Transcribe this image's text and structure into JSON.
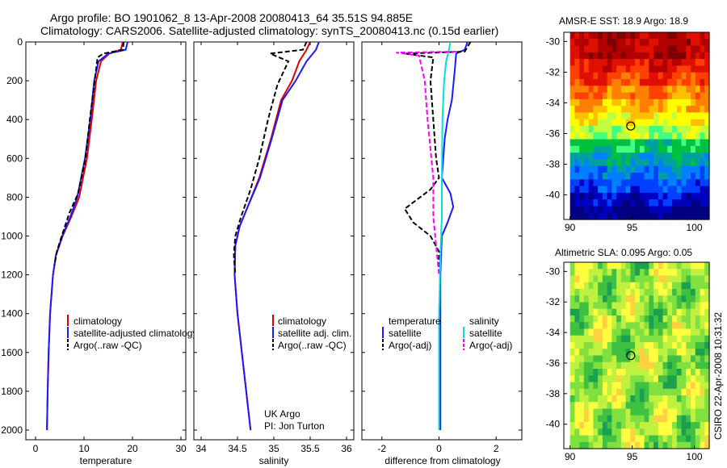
{
  "header": {
    "line1": "Argo profile: BO 1901062_8 13-Apr-2008 20080413_64 35.51S 94.885E",
    "line2": "Climatology: CARS2006. Satellite-adjusted climatology: synTS_20080413.nc (0.15d earlier)"
  },
  "credit": "CSIRO 22-Apr-2008 10:31:32",
  "colors": {
    "climatology": "#e00000",
    "satellite": "#1a1aff",
    "argo": "#000000",
    "salinity_satellite": "#00e0e0",
    "salinity_argo": "#ff00ff"
  },
  "chart_data": [
    {
      "type": "line",
      "id": "temperature",
      "xlabel": "temperature",
      "xlim": [
        -2,
        31
      ],
      "ylim": [
        0,
        2050
      ],
      "xticks": [
        "0",
        "10",
        "20",
        "30"
      ],
      "yticks": [
        "0",
        "200",
        "400",
        "600",
        "800",
        "1000",
        "1200",
        "1400",
        "1600",
        "1800",
        "2000"
      ],
      "legend": [
        "climatology",
        "satellite-adjusted climatology",
        "Argo(..raw -QC)"
      ],
      "series": [
        {
          "name": "climatology",
          "style": "solid",
          "color_key": "climatology",
          "x": [
            18.0,
            17.6,
            15.2,
            13.5,
            12.5,
            11.6,
            10.6,
            9.0,
            7.4,
            5.6,
            4.2,
            3.6,
            3.0,
            2.7,
            2.5,
            2.35
          ],
          "y": [
            0,
            40,
            60,
            100,
            200,
            400,
            600,
            800,
            900,
            1000,
            1100,
            1200,
            1400,
            1600,
            1800,
            2000
          ]
        },
        {
          "name": "satellite-adjusted climatology",
          "style": "solid",
          "color_key": "satellite",
          "x": [
            19.0,
            18.6,
            15.0,
            13.0,
            12.1,
            11.3,
            10.2,
            8.6,
            7.2,
            5.5,
            4.2,
            3.6,
            3.0,
            2.7,
            2.5,
            2.35
          ],
          "y": [
            0,
            40,
            60,
            100,
            200,
            400,
            600,
            800,
            900,
            1000,
            1100,
            1200,
            1400,
            1600,
            1800,
            2000
          ]
        },
        {
          "name": "Argo(..raw -QC)",
          "style": "dashed",
          "color_key": "argo",
          "x": [
            18.2,
            18.0,
            14.0,
            12.8,
            12.2,
            11.2,
            10.3,
            8.8,
            7.0,
            5.4,
            4.4,
            3.9
          ],
          "y": [
            0,
            40,
            60,
            80,
            200,
            400,
            600,
            780,
            880,
            1000,
            1080,
            1150
          ]
        }
      ]
    },
    {
      "type": "line",
      "id": "salinity",
      "xlabel": "salinity",
      "xlim": [
        33.9,
        36.1
      ],
      "ylim": [
        0,
        2050
      ],
      "xticks": [
        "34",
        "34.5",
        "35",
        "35.5",
        "36"
      ],
      "legend": [
        "climatology",
        "satellite adj. clim.",
        "Argo(..raw -QC)"
      ],
      "annotation": [
        "UK Argo",
        "PI: Jon Turton"
      ],
      "series": [
        {
          "name": "climatology",
          "style": "solid",
          "color_key": "climatology",
          "x": [
            35.5,
            35.45,
            35.35,
            35.25,
            35.1,
            34.96,
            34.8,
            34.64,
            34.53,
            34.47,
            34.46,
            34.5,
            34.56,
            34.62,
            34.68
          ],
          "y": [
            0,
            40,
            100,
            200,
            300,
            500,
            700,
            850,
            950,
            1050,
            1200,
            1400,
            1600,
            1800,
            2000
          ]
        },
        {
          "name": "satellite adj. clim.",
          "style": "solid",
          "color_key": "satellite",
          "x": [
            35.62,
            35.58,
            35.45,
            35.3,
            35.12,
            34.97,
            34.81,
            34.64,
            34.53,
            34.47,
            34.46,
            34.5,
            34.56,
            34.62,
            34.68
          ],
          "y": [
            0,
            40,
            100,
            200,
            300,
            500,
            700,
            850,
            950,
            1050,
            1200,
            1400,
            1600,
            1800,
            2000
          ]
        },
        {
          "name": "Argo(..raw -QC)",
          "style": "dashed",
          "color_key": "argo",
          "x": [
            35.45,
            35.4,
            34.95,
            35.2,
            35.05,
            34.92,
            34.8,
            34.68,
            34.55,
            34.47,
            34.45,
            34.47
          ],
          "y": [
            0,
            40,
            60,
            100,
            220,
            400,
            600,
            760,
            900,
            1000,
            1100,
            1200
          ]
        }
      ]
    },
    {
      "type": "line",
      "id": "difference",
      "xlabel": "difference from climatology",
      "xlim": [
        -2.7,
        2.9
      ],
      "ylim": [
        0,
        2050
      ],
      "xticks": [
        "-2",
        "0",
        "2"
      ],
      "legend": [
        "temperature",
        "satellite",
        "Argo(-adj)",
        "salinity",
        "satellite",
        "Argo(-adj)"
      ],
      "series": [
        {
          "name": "temperature satellite",
          "style": "solid",
          "color_key": "satellite",
          "x": [
            1.0,
            0.9,
            0.6,
            0.55,
            0.45,
            0.3,
            0.2,
            0.15,
            0.1,
            0.4,
            0.5,
            0.3,
            0.1,
            0.05,
            0.05,
            0.05,
            0.05
          ],
          "y": [
            0,
            40,
            60,
            150,
            300,
            400,
            500,
            600,
            700,
            780,
            850,
            930,
            1000,
            1200,
            1500,
            1800,
            2000
          ]
        },
        {
          "name": "temperature Argo(-adj)",
          "style": "dashed",
          "color_key": "argo",
          "x": [
            1.1,
            0.9,
            -1.2,
            -0.2,
            -0.3,
            -0.2,
            -0.1,
            0.0,
            -0.3,
            -1.2,
            -0.9,
            -0.3,
            0.0,
            0.0
          ],
          "y": [
            0,
            50,
            60,
            80,
            200,
            400,
            600,
            700,
            760,
            860,
            930,
            1000,
            1080,
            1160
          ]
        },
        {
          "name": "salinity satellite",
          "style": "solid",
          "color_key": "salinity_satellite",
          "x": [
            0.4,
            0.35,
            0.25,
            0.18,
            0.12,
            0.1,
            0.1,
            0.05,
            0.0,
            0.0,
            0.0
          ],
          "y": [
            0,
            40,
            100,
            200,
            400,
            700,
            900,
            1100,
            1400,
            1700,
            2000
          ]
        },
        {
          "name": "salinity Argo(-adj)",
          "style": "dashed",
          "color_key": "salinity_argo",
          "x": [
            0.6,
            -1.5,
            -0.7,
            -0.5,
            -0.4,
            -0.2,
            -0.2,
            -0.1,
            0.0
          ],
          "y": [
            50,
            55,
            70,
            200,
            400,
            700,
            900,
            1050,
            1200
          ]
        }
      ]
    },
    {
      "type": "heatmap",
      "id": "amsr_e_sst",
      "title": "AMSR-E SST: 18.9 Argo: 18.9",
      "xlim": [
        89.5,
        101.2
      ],
      "ylim": [
        -41.6,
        -29.4
      ],
      "xticks": [
        "90",
        "95",
        "100"
      ],
      "yticks": [
        "-30",
        "-32",
        "-34",
        "-36",
        "-38",
        "-40"
      ],
      "marker": {
        "x": 94.885,
        "y": -35.51
      },
      "colors": [
        "#800000",
        "#b30000",
        "#e01000",
        "#ff4000",
        "#ff8000",
        "#ffbf00",
        "#ffff00",
        "#bfff40",
        "#40ff80",
        "#00c040",
        "#00a0a0",
        "#0080ff",
        "#0040ff",
        "#0000c0",
        "#000080"
      ],
      "row_levels": [
        1,
        1,
        2,
        3,
        4,
        5,
        6,
        7,
        9,
        10,
        11,
        12,
        13,
        14
      ]
    },
    {
      "type": "heatmap",
      "id": "altimetric_sla",
      "title": "Altimetric SLA: 0.095 Argo: 0.05",
      "xlim": [
        89.5,
        101.2
      ],
      "ylim": [
        -41.6,
        -29.4
      ],
      "xticks": [
        "90",
        "95",
        "100"
      ],
      "yticks": [
        "-30",
        "-32",
        "-34",
        "-36",
        "-38",
        "-40"
      ],
      "marker": {
        "x": 94.885,
        "y": -35.51
      },
      "colors": [
        "#1aa050",
        "#40c040",
        "#80e040",
        "#c0f040",
        "#ffff40",
        "#ffd040"
      ]
    }
  ]
}
